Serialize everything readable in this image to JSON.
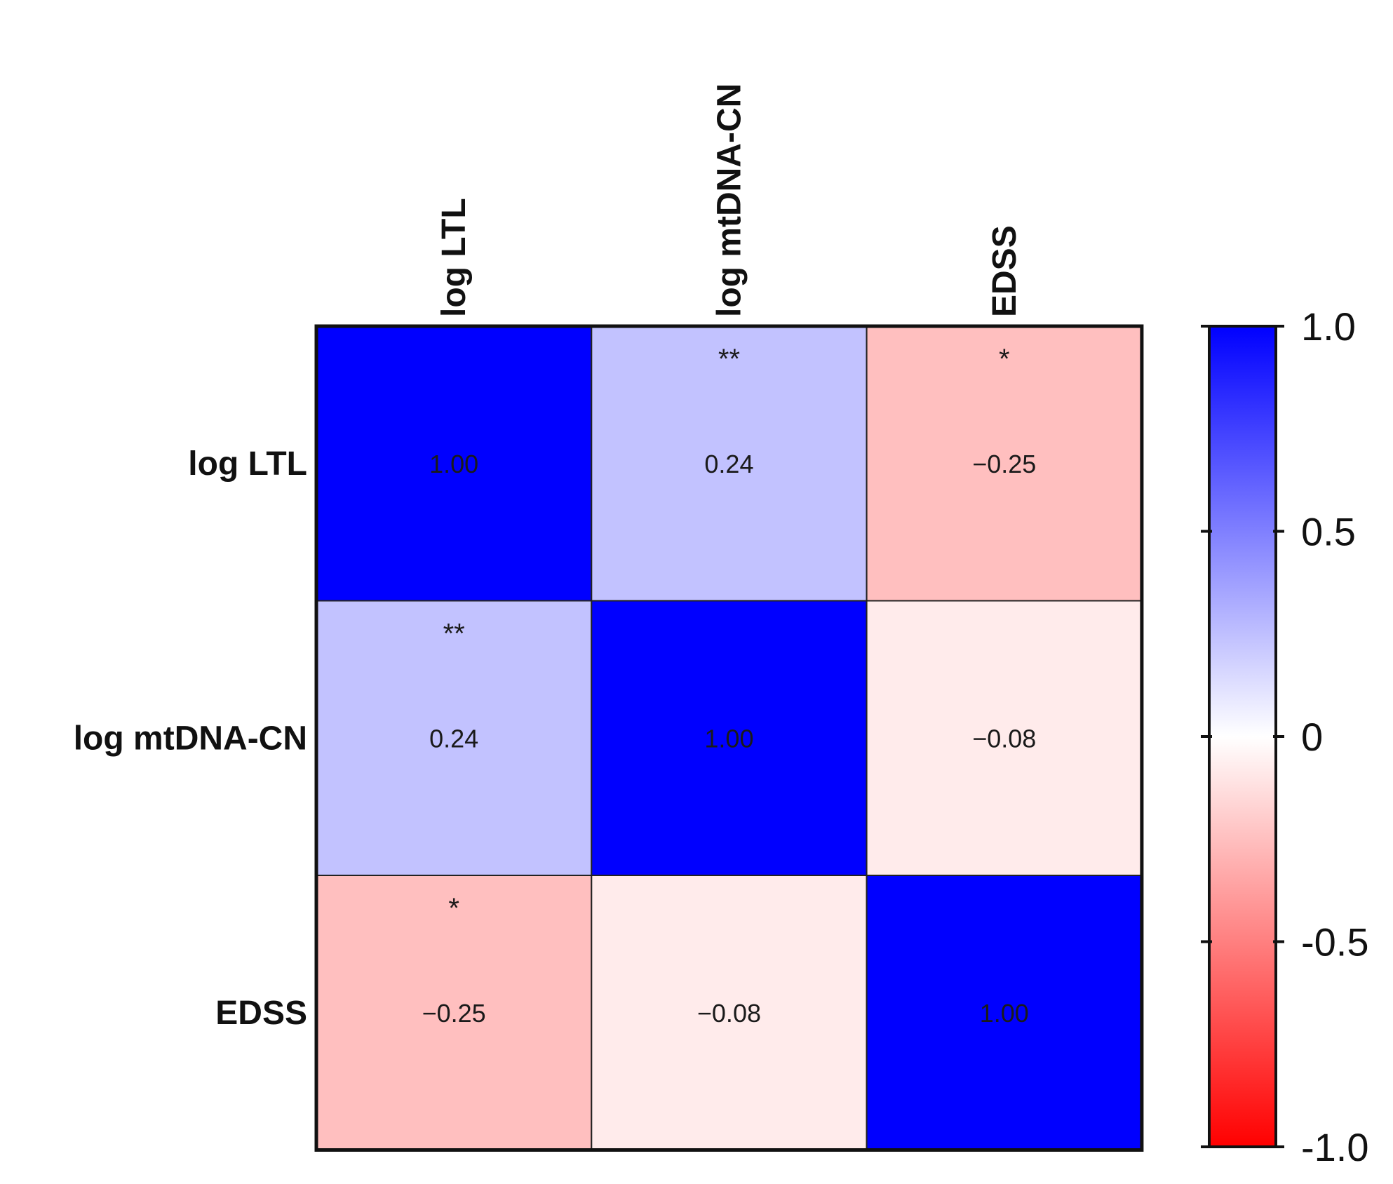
{
  "chart_data": {
    "type": "heatmap",
    "variables": [
      "log LTL",
      "log mtDNA-CN",
      "EDSS"
    ],
    "matrix": [
      [
        1.0,
        0.24,
        -0.25
      ],
      [
        0.24,
        1.0,
        -0.08
      ],
      [
        -0.25,
        -0.08,
        1.0
      ]
    ],
    "value_labels": [
      [
        "1.00",
        "0.24",
        "−0.25"
      ],
      [
        "0.24",
        "1.00",
        "−0.08"
      ],
      [
        "−0.25",
        "−0.08",
        "1.00"
      ]
    ],
    "significance": [
      [
        "",
        "**",
        "*"
      ],
      [
        "**",
        "",
        ""
      ],
      [
        "*",
        "",
        ""
      ]
    ],
    "color_scale": {
      "min": -1.0,
      "max": 1.0,
      "low_color": "#ff0000",
      "mid_color": "#ffffff",
      "high_color": "#0000ff",
      "ticks": [
        1.0,
        0.5,
        0,
        -0.5,
        -1.0
      ],
      "tick_labels": [
        "1.0",
        "0.5",
        "0",
        "-0.5",
        "-1.0"
      ]
    },
    "legend_placement": "right"
  }
}
